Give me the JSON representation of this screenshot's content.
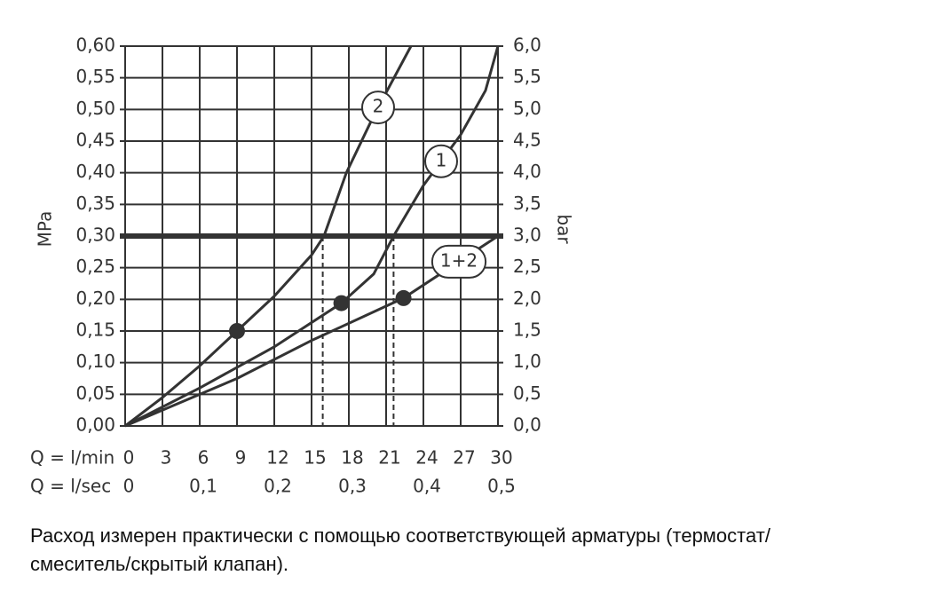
{
  "chart_data": {
    "type": "line",
    "ylabel": "MPa",
    "y2label": "bar",
    "xlabel": "Q = l/min",
    "x2label": "Q = l/sec",
    "xlim": [
      0,
      30
    ],
    "xticks": [
      0,
      3,
      6,
      9,
      12,
      15,
      18,
      21,
      24,
      27,
      30
    ],
    "x2lim": [
      0,
      0.5
    ],
    "x2ticks": [
      {
        "value": 0,
        "label": "0"
      },
      {
        "value": 0.1,
        "label": "0,1"
      },
      {
        "value": 0.2,
        "label": "0,2"
      },
      {
        "value": 0.3,
        "label": "0,3"
      },
      {
        "value": 0.4,
        "label": "0,4"
      },
      {
        "value": 0.5,
        "label": "0,5"
      }
    ],
    "ylim": [
      0,
      0.6
    ],
    "yticks": [
      {
        "value": 0,
        "label": "0,00"
      },
      {
        "value": 0.05,
        "label": "0,05"
      },
      {
        "value": 0.1,
        "label": "0,10"
      },
      {
        "value": 0.15,
        "label": "0,15"
      },
      {
        "value": 0.2,
        "label": "0,20"
      },
      {
        "value": 0.25,
        "label": "0,25"
      },
      {
        "value": 0.3,
        "label": "0,30"
      },
      {
        "value": 0.35,
        "label": "0,35"
      },
      {
        "value": 0.4,
        "label": "0,40"
      },
      {
        "value": 0.45,
        "label": "0,45"
      },
      {
        "value": 0.5,
        "label": "0,50"
      },
      {
        "value": 0.55,
        "label": "0,55"
      },
      {
        "value": 0.6,
        "label": "0,60"
      }
    ],
    "y2lim": [
      0,
      6
    ],
    "y2ticks": [
      {
        "value": 0,
        "label": "0,0"
      },
      {
        "value": 0.5,
        "label": "0,5"
      },
      {
        "value": 1,
        "label": "1,0"
      },
      {
        "value": 1.5,
        "label": "1,5"
      },
      {
        "value": 2,
        "label": "2,0"
      },
      {
        "value": 2.5,
        "label": "2,5"
      },
      {
        "value": 3,
        "label": "3,0"
      },
      {
        "value": 3.5,
        "label": "3,5"
      },
      {
        "value": 4,
        "label": "4,0"
      },
      {
        "value": 4.5,
        "label": "4,5"
      },
      {
        "value": 5,
        "label": "5,0"
      },
      {
        "value": 5.5,
        "label": "5,5"
      },
      {
        "value": 6,
        "label": "6,0"
      }
    ],
    "grid": true,
    "series": [
      {
        "name": "2",
        "color": "#333333",
        "x": [
          0,
          3,
          6,
          9,
          12,
          15,
          16,
          17.8,
          20,
          23
        ],
        "values": [
          0,
          0.045,
          0.095,
          0.15,
          0.205,
          0.27,
          0.3,
          0.4,
          0.49,
          0.6
        ]
      },
      {
        "name": "1",
        "color": "#333333",
        "x": [
          0,
          6,
          12,
          17.4,
          20,
          21.6,
          24,
          27,
          29,
          30
        ],
        "values": [
          0,
          0.06,
          0.125,
          0.194,
          0.24,
          0.3,
          0.38,
          0.46,
          0.53,
          0.6
        ]
      },
      {
        "name": "1+2",
        "color": "#333333",
        "x": [
          0,
          9,
          15,
          22.4,
          30
        ],
        "values": [
          0,
          0.075,
          0.135,
          0.202,
          0.3
        ]
      }
    ],
    "markers": [
      {
        "x": 9,
        "y": 0.15
      },
      {
        "x": 17.4,
        "y": 0.194
      },
      {
        "x": 22.4,
        "y": 0.202
      }
    ],
    "hline": 0.3,
    "drop_lines": [
      15.9,
      21.6
    ],
    "caption": [
      "Расход измерен практически с помощью соответствующей арматуры (термостат/",
      "смеситель/скрытый клапан)."
    ]
  }
}
